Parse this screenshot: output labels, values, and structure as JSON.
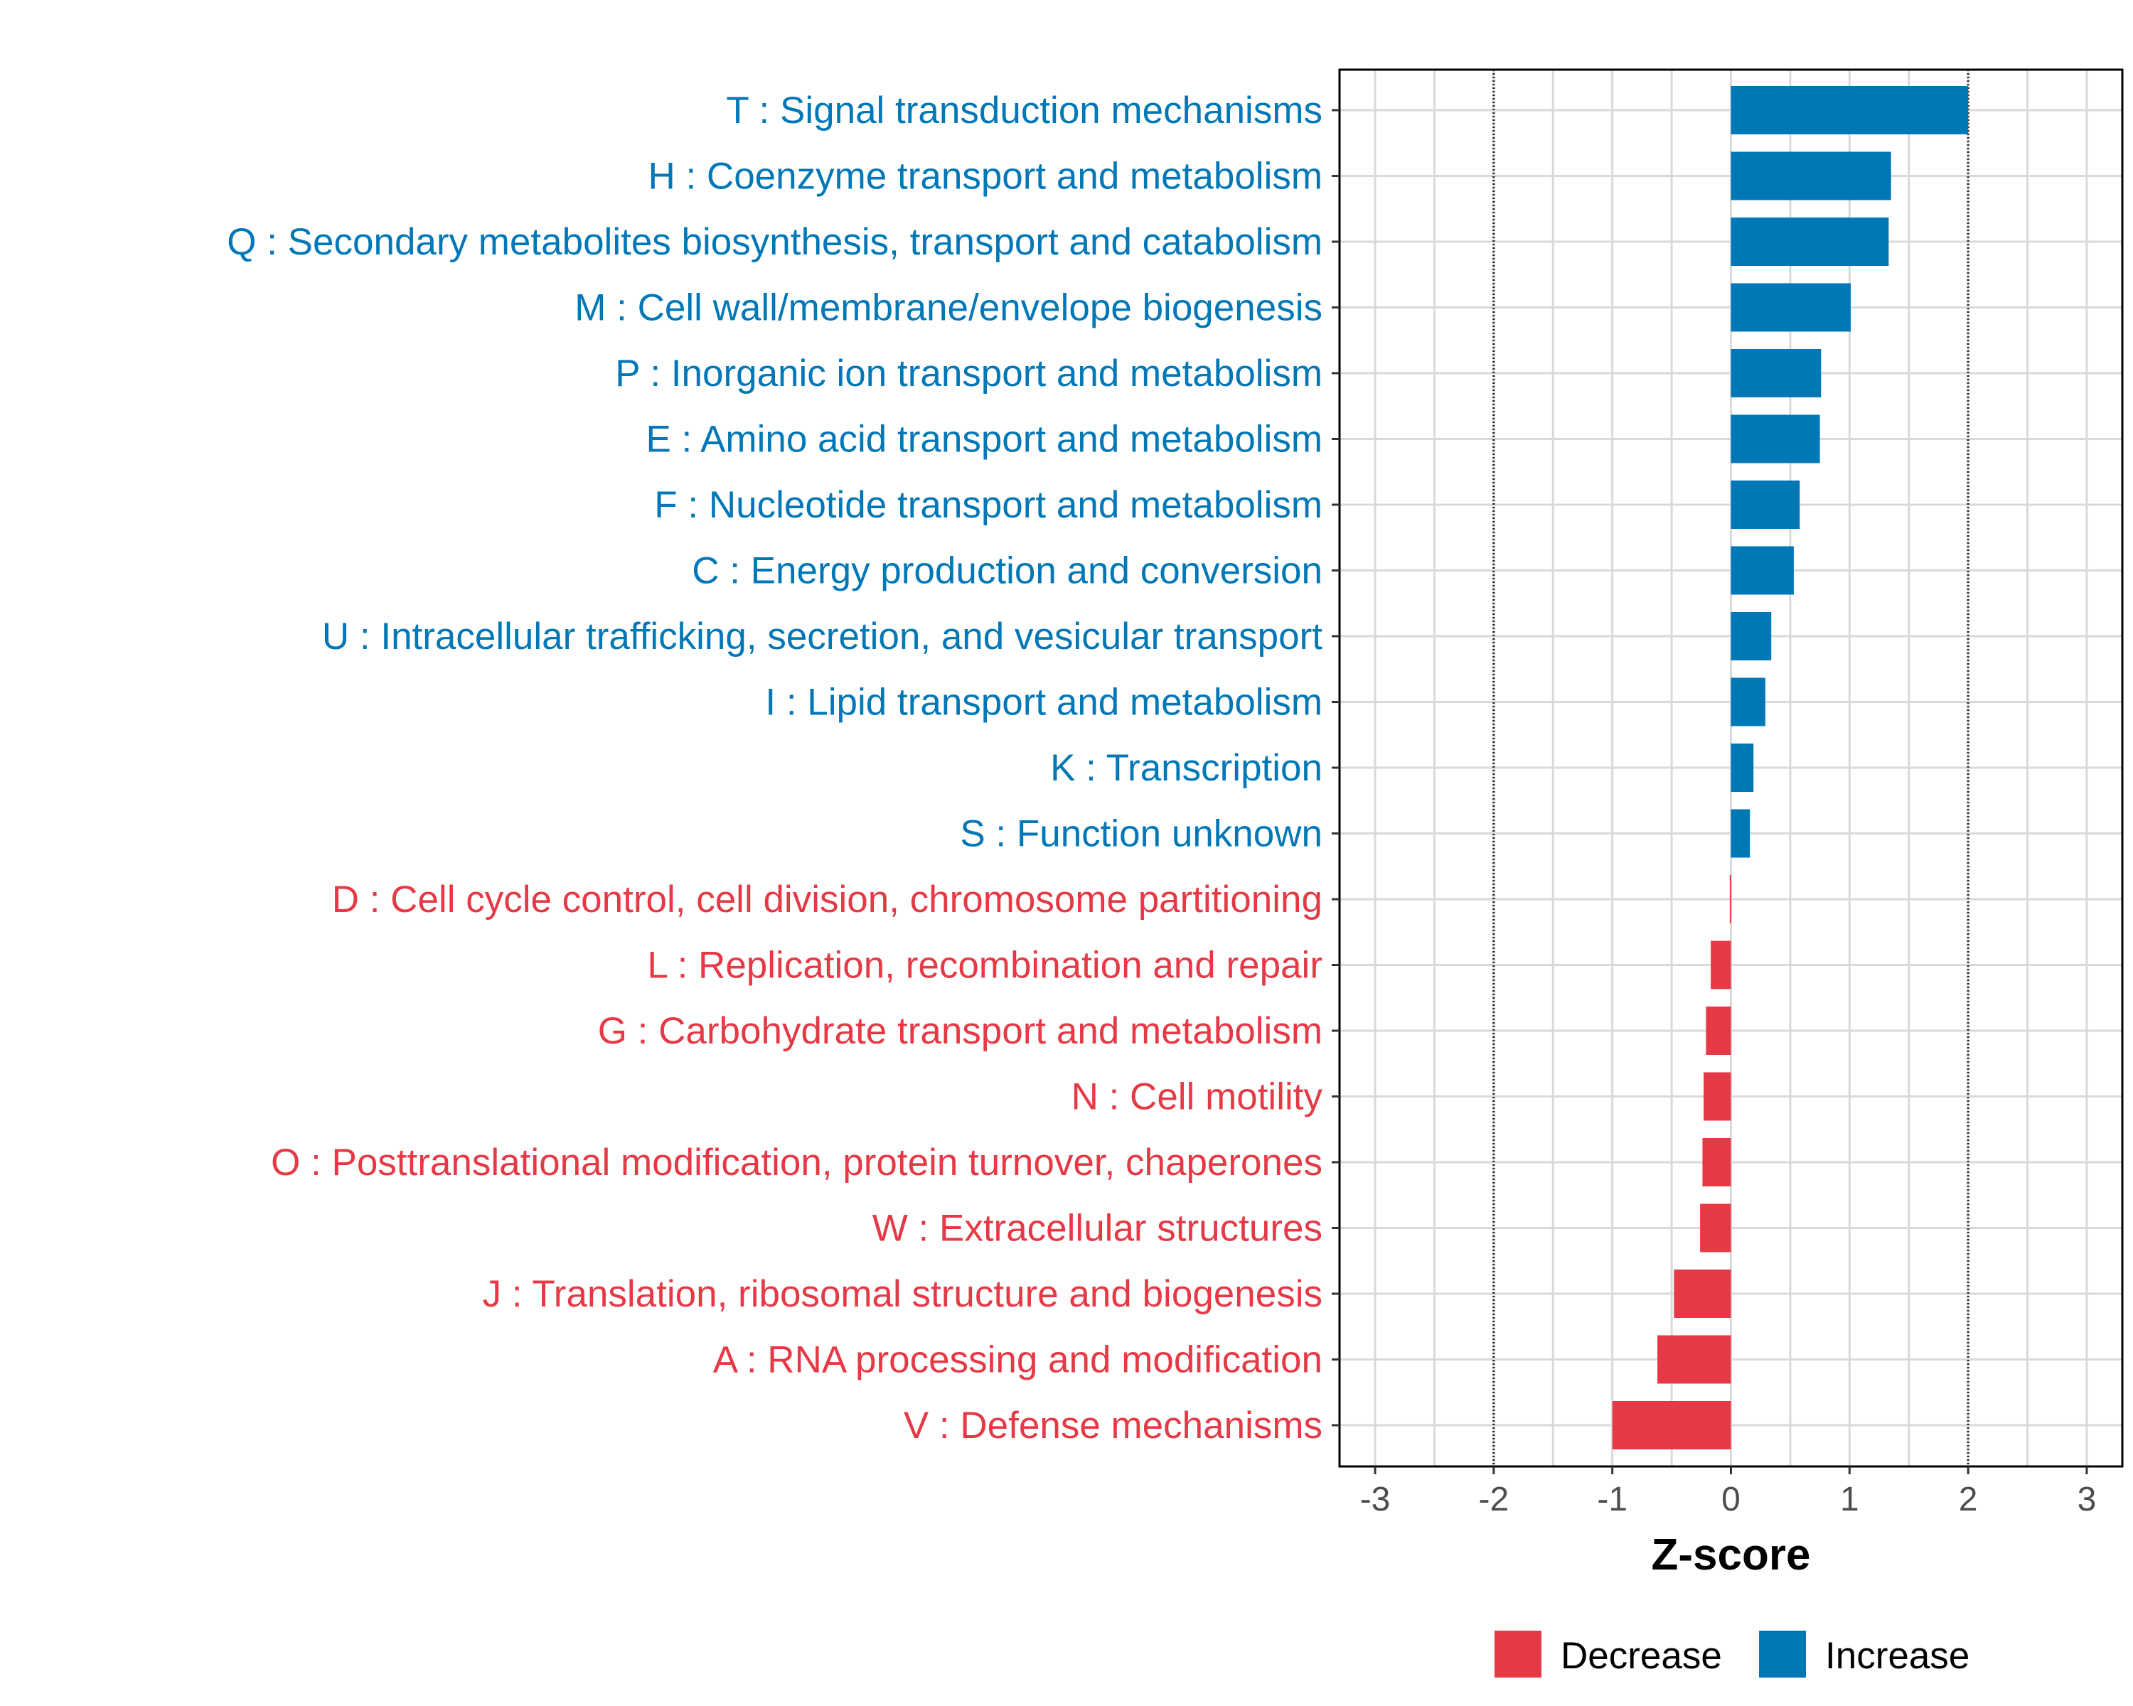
{
  "chart_data": {
    "type": "bar",
    "orientation": "horizontal",
    "xlabel": "Z-score",
    "xlim": [
      -3.3,
      3.3
    ],
    "xticks": [
      -3,
      -2,
      -1,
      0,
      1,
      2,
      3
    ],
    "xtick_labels": [
      "-3",
      "-2",
      "-1",
      "0",
      "1",
      "2",
      "3"
    ],
    "reference_lines": [
      -2,
      2
    ],
    "grid": true,
    "categories": [
      "T : Signal transduction mechanisms",
      "H : Coenzyme transport and metabolism",
      "Q : Secondary metabolites biosynthesis, transport and catabolism",
      "M : Cell wall/membrane/envelope biogenesis",
      "P : Inorganic ion transport and metabolism",
      "E : Amino acid transport and metabolism",
      "F : Nucleotide transport and metabolism",
      "C : Energy production and conversion",
      "U : Intracellular trafficking, secretion, and vesicular transport",
      "I : Lipid transport and metabolism",
      "K : Transcription",
      "S : Function unknown",
      "D : Cell cycle control, cell division, chromosome partitioning",
      "L : Replication, recombination and repair",
      "G : Carbohydrate transport and metabolism",
      "N : Cell motility",
      "O : Posttranslational modification, protein turnover, chaperones",
      "W : Extracellular structures",
      "J : Translation, ribosomal structure and biogenesis",
      "A : RNA processing and modification",
      "V : Defense mechanisms"
    ],
    "values": [
      2.0,
      1.35,
      1.33,
      1.01,
      0.76,
      0.75,
      0.58,
      0.53,
      0.34,
      0.29,
      0.19,
      0.16,
      -0.01,
      -0.17,
      -0.21,
      -0.23,
      -0.24,
      -0.26,
      -0.48,
      -0.62,
      -1.0
    ],
    "legend": {
      "placement": "bottom",
      "entries": [
        {
          "name": "Decrease",
          "color": "#E63946"
        },
        {
          "name": "Increase",
          "color": "#0077B6"
        }
      ]
    },
    "colors": {
      "increase": "#0077B6",
      "decrease": "#E63946"
    }
  }
}
